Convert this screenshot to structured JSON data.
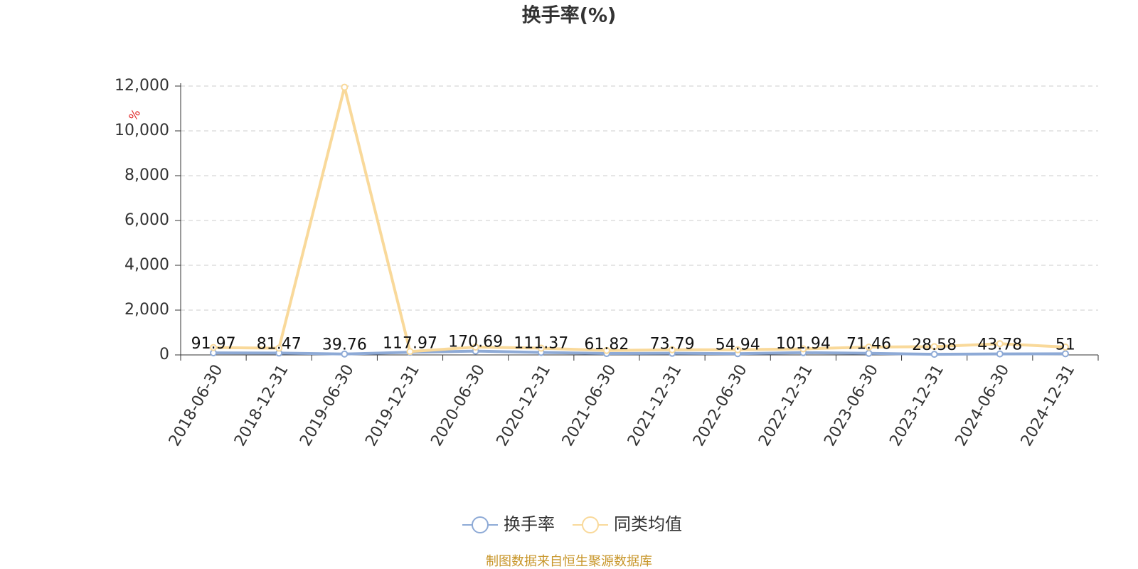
{
  "chart_data": {
    "type": "line",
    "title": "换手率(%)",
    "unit": "%",
    "source": "制图数据来自恒生聚源数据库",
    "categories": [
      "2018-06-30",
      "2018-12-31",
      "2019-06-30",
      "2019-12-31",
      "2020-06-30",
      "2020-12-31",
      "2021-06-30",
      "2021-12-31",
      "2022-06-30",
      "2022-12-31",
      "2023-06-30",
      "2023-12-31",
      "2024-06-30",
      "2024-12-31"
    ],
    "series": [
      {
        "name": "换手率",
        "color": "#8eaad6",
        "labels": true,
        "values": [
          91.97,
          81.47,
          39.76,
          117.97,
          170.69,
          111.37,
          61.82,
          73.79,
          54.94,
          101.94,
          71.46,
          28.58,
          43.78,
          51
        ]
      },
      {
        "name": "同类均值",
        "color": "#f9d99a",
        "labels": false,
        "values": [
          330,
          300,
          11950,
          150,
          350,
          300,
          200,
          230,
          230,
          270,
          350,
          370,
          500,
          350
        ]
      }
    ],
    "ylim": [
      0,
      12000
    ],
    "yticks": [
      0,
      {
        "value": 2000,
        "label": "2,000"
      },
      {
        "value": 4000,
        "label": "4,000"
      },
      {
        "value": 6000,
        "label": "6,000"
      },
      {
        "value": 8000,
        "label": "8,000"
      },
      {
        "value": 10000,
        "label": "10,000"
      },
      {
        "value": 12000,
        "label": "12,000"
      }
    ],
    "grid": true
  }
}
